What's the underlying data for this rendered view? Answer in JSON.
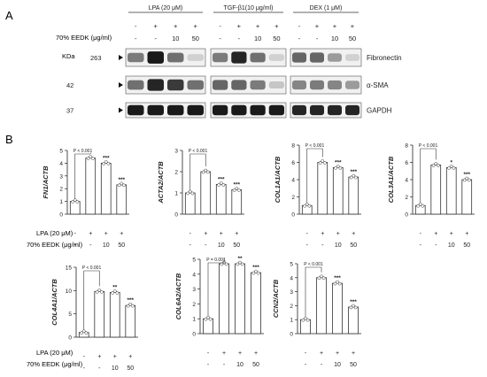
{
  "panelA": {
    "letter": "A",
    "conditions": [
      "LPA (20 μM)",
      "TGF-β1(10 μg/ml)",
      "DEX (1 μM)"
    ],
    "row_stimulus": [
      "-",
      "+",
      "+",
      "+"
    ],
    "row_eedk": {
      "label": "70% EEDK (μg/ml)",
      "values": [
        "-",
        "-",
        "10",
        "50"
      ]
    },
    "kda_label": "KDa",
    "bands": [
      {
        "mw": "263",
        "name": "Fibronectin",
        "intensity": [
          [
            0.5,
            0.95,
            0.55,
            0.1
          ],
          [
            0.5,
            0.9,
            0.55,
            0.1
          ],
          [
            0.6,
            0.6,
            0.35,
            0.1
          ]
        ]
      },
      {
        "mw": "42",
        "name": "α-SMA",
        "intensity": [
          [
            0.55,
            0.9,
            0.8,
            0.55
          ],
          [
            0.6,
            0.6,
            0.5,
            0.15
          ],
          [
            0.45,
            0.5,
            0.45,
            0.35
          ]
        ]
      },
      {
        "mw": "37",
        "name": "GAPDH",
        "intensity": [
          [
            0.95,
            0.95,
            0.95,
            0.95
          ],
          [
            0.95,
            0.95,
            0.95,
            0.95
          ],
          [
            0.9,
            0.9,
            0.9,
            0.9
          ]
        ]
      }
    ]
  },
  "panelB": {
    "letter": "B",
    "row_labels": {
      "lpa": "LPA (20 μM)",
      "eedk": "70% EEDK (μg/ml)"
    },
    "treat_lpa": [
      "-",
      "+",
      "+",
      "+"
    ],
    "treat_eedk": [
      "-",
      "-",
      "10",
      "50"
    ]
  },
  "chart_data": [
    {
      "type": "bar",
      "ylabel": "FN1/ACTB",
      "yticks": [
        0,
        1,
        2,
        3,
        4,
        5
      ],
      "ylim": [
        0,
        5
      ],
      "values": [
        1.0,
        4.4,
        4.0,
        2.3
      ],
      "sig": [
        "",
        "",
        "***",
        "***"
      ],
      "pvalue": "P < 0.001"
    },
    {
      "type": "bar",
      "ylabel": "ACTA2/ACTB",
      "yticks": [
        0,
        1,
        2,
        3
      ],
      "ylim": [
        0,
        3
      ],
      "values": [
        1.0,
        2.0,
        1.4,
        1.15
      ],
      "sig": [
        "",
        "",
        "***",
        "***"
      ],
      "pvalue": "P < 0.001"
    },
    {
      "type": "bar",
      "ylabel": "COL1A1/ACTB",
      "yticks": [
        0,
        2,
        4,
        6,
        8
      ],
      "ylim": [
        0,
        8
      ],
      "values": [
        1.0,
        6.0,
        5.4,
        4.3
      ],
      "sig": [
        "",
        "",
        "***",
        "***"
      ],
      "pvalue": "P < 0.001"
    },
    {
      "type": "bar",
      "ylabel": "COL3A1/ACTB",
      "yticks": [
        0,
        2,
        4,
        6,
        8
      ],
      "ylim": [
        0,
        8
      ],
      "values": [
        1.0,
        5.7,
        5.4,
        4.0
      ],
      "sig": [
        "",
        "",
        "*",
        "***"
      ],
      "pvalue": "P < 0.001"
    },
    {
      "type": "bar",
      "ylabel": "COL4A1/ACTB",
      "yticks": [
        0,
        5,
        10,
        15
      ],
      "ylim": [
        0,
        15
      ],
      "values": [
        1.0,
        9.8,
        9.6,
        6.8
      ],
      "sig": [
        "",
        "",
        "**",
        "***"
      ],
      "pvalue": "P < 0.001"
    },
    {
      "type": "bar",
      "ylabel": "COL6A2/ACTB",
      "yticks": [
        0,
        1,
        2,
        3,
        4,
        5
      ],
      "ylim": [
        0,
        5
      ],
      "values": [
        1.0,
        4.7,
        4.7,
        4.1
      ],
      "sig": [
        "",
        "",
        "**",
        "***"
      ],
      "pvalue": "P = 0.001"
    },
    {
      "type": "bar",
      "ylabel": "CCN2/ACTB",
      "yticks": [
        0,
        1,
        2,
        3,
        4,
        5
      ],
      "ylim": [
        0,
        5
      ],
      "values": [
        1.0,
        4.0,
        3.6,
        1.9
      ],
      "sig": [
        "",
        "",
        "***",
        "***"
      ],
      "pvalue": "P < 0.001"
    }
  ]
}
